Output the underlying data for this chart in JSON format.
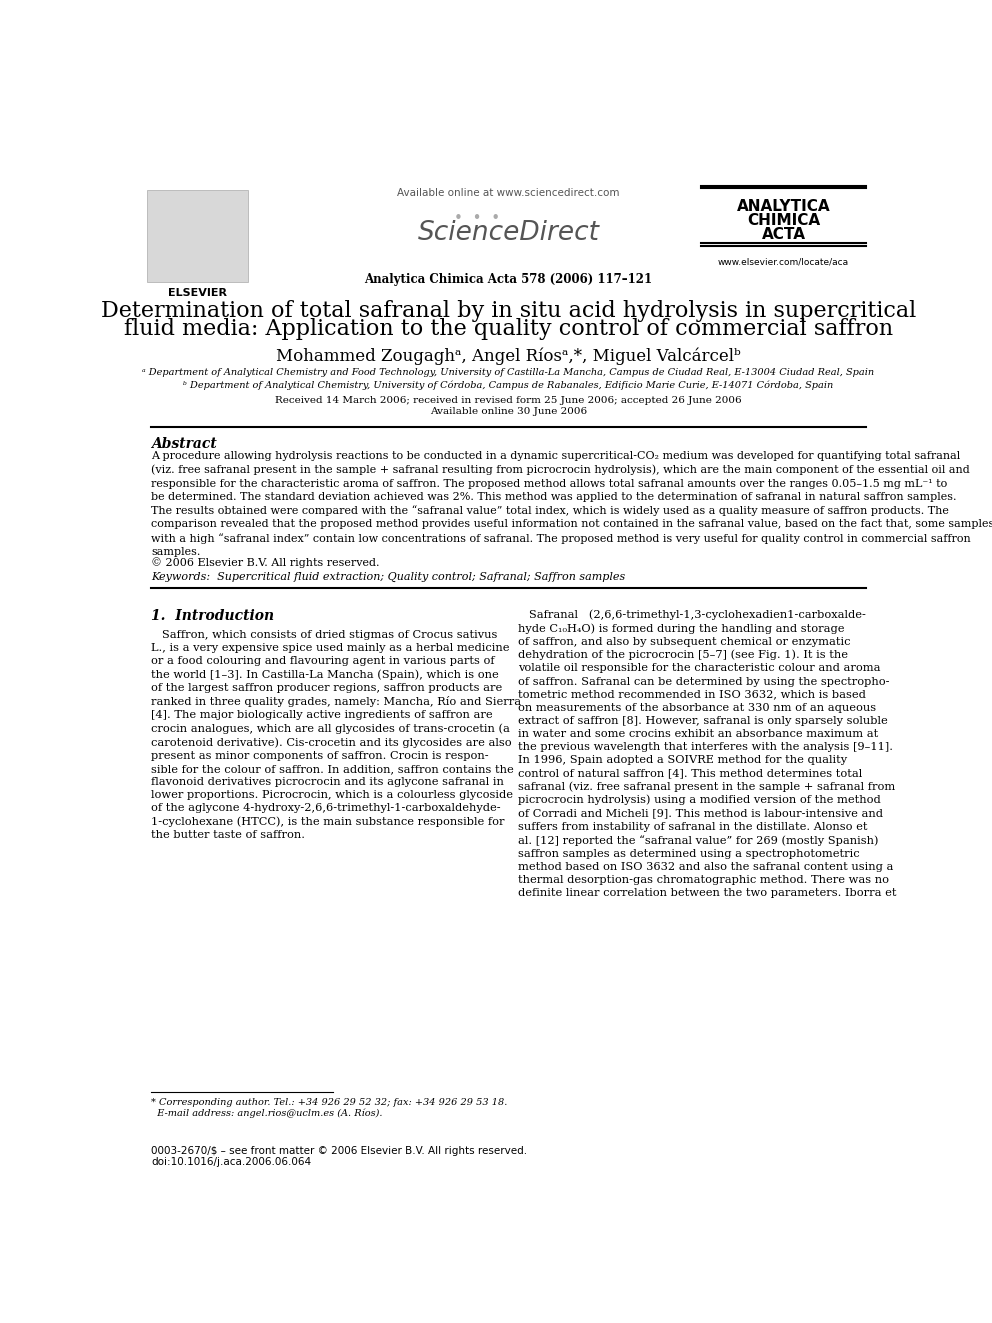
{
  "bg_color": "#ffffff",
  "title_line1": "Determination of total safranal by in situ acid hydrolysis in supercritical",
  "title_line2": "fluid media: Application to the quality control of commercial saffron",
  "authors": "Mohammed Zougaghᵃ, Angel Ríosᵃ,*, Miguel Valcárcelᵇ",
  "affil_a": "ᵃ Department of Analytical Chemistry and Food Technology, University of Castilla-La Mancha, Campus de Ciudad Real, E-13004 Ciudad Real, Spain",
  "affil_b": "ᵇ Department of Analytical Chemistry, University of Córdoba, Campus de Rabanales, Edificio Marie Curie, E-14071 Córdoba, Spain",
  "received": "Received 14 March 2006; received in revised form 25 June 2006; accepted 26 June 2006",
  "available": "Available online 30 June 2006",
  "journal_header": "Analytica Chimica Acta 578 (2006) 117–121",
  "available_online": "Available online at www.sciencedirect.com",
  "journal_name_line1": "ANALYTICA",
  "journal_name_line2": "CHIMICA",
  "journal_name_line3": "ACTA",
  "website": "www.elsevier.com/locate/aca",
  "abstract_title": "Abstract",
  "abstract_wrapped": "A procedure allowing hydrolysis reactions to be conducted in a dynamic supercritical-CO₂ medium was developed for quantifying total safranal\n(viz. free safranal present in the sample + safranal resulting from picrocrocin hydrolysis), which are the main component of the essential oil and\nresponsible for the characteristic aroma of saffron. The proposed method allows total safranal amounts over the ranges 0.05–1.5 mg mL⁻¹ to\nbe determined. The standard deviation achieved was 2%. This method was applied to the determination of safranal in natural saffron samples.\nThe results obtained were compared with the “safranal value” total index, which is widely used as a quality measure of saffron products. The\ncomparison revealed that the proposed method provides useful information not contained in the safranal value, based on the fact that, some samples\nwith a high “safranal index” contain low concentrations of safranal. The proposed method is very useful for quality control in commercial saffron\nsamples.",
  "copyright": "© 2006 Elsevier B.V. All rights reserved.",
  "keywords": "Keywords:  Supercritical fluid extraction; Quality control; Safranal; Saffron samples",
  "section1_title": "1.  Introduction",
  "left_col_text": "   Saffron, which consists of dried stigmas of Crocus sativus\nL., is a very expensive spice used mainly as a herbal medicine\nor a food colouring and flavouring agent in various parts of\nthe world [1–3]. In Castilla-La Mancha (Spain), which is one\nof the largest saffron producer regions, saffron products are\nranked in three quality grades, namely: Mancha, Río and Sierra\n[4]. The major biologically active ingredients of saffron are\ncrocin analogues, which are all glycosides of trans-crocetin (a\ncarotenoid derivative). Cis-crocetin and its glycosides are also\npresent as minor components of saffron. Crocin is respon-\nsible for the colour of saffron. In addition, saffron contains the\nflavonoid derivatives picrocrocin and its aglycone safranal in\nlower proportions. Picrocrocin, which is a colourless glycoside\nof the aglycone 4-hydroxy-2,6,6-trimethyl-1-carboxaldehyde-\n1-cyclohexane (HTCC), is the main substance responsible for\nthe butter taste of saffron.",
  "right_col_text": "   Safranal   (2,6,6-trimethyl-1,3-cyclohexadien1-carboxalde-\nhyde C₁₀H₄O) is formed during the handling and storage\nof saffron, and also by subsequent chemical or enzymatic\ndehydration of the picrocrocin [5–7] (see Fig. 1). It is the\nvolatile oil responsible for the characteristic colour and aroma\nof saffron. Safranal can be determined by using the spectropho-\ntometric method recommended in ISO 3632, which is based\non measurements of the absorbance at 330 nm of an aqueous\nextract of saffron [8]. However, safranal is only sparsely soluble\nin water and some crocins exhibit an absorbance maximum at\nthe previous wavelength that interferes with the analysis [9–11].\nIn 1996, Spain adopted a SOIVRE method for the quality\ncontrol of natural saffron [4]. This method determines total\nsafranal (viz. free safranal present in the sample + safranal from\npicrocrocin hydrolysis) using a modified version of the method\nof Corradi and Micheli [9]. This method is labour-intensive and\nsuffers from instability of safranal in the distillate. Alonso et\nal. [12] reported the “safranal value” for 269 (mostly Spanish)\nsaffron samples as determined using a spectrophotometric\nmethod based on ISO 3632 and also the safranal content using a\nthermal desorption-gas chromatographic method. There was no\ndefinite linear correlation between the two parameters. Iborra et",
  "footnote_line1": "* Corresponding author. Tel.: +34 926 29 52 32; fax: +34 926 29 53 18.",
  "footnote_line2": "  E-mail address: angel.rios@uclm.es (A. Ríos).",
  "footer_issn": "0003-2670/$ – see front matter © 2006 Elsevier B.V. All rights reserved.",
  "footer_doi": "doi:10.1016/j.aca.2006.06.064",
  "sep_color": "#000000",
  "text_color": "#000000",
  "link_color": "#0000cc"
}
